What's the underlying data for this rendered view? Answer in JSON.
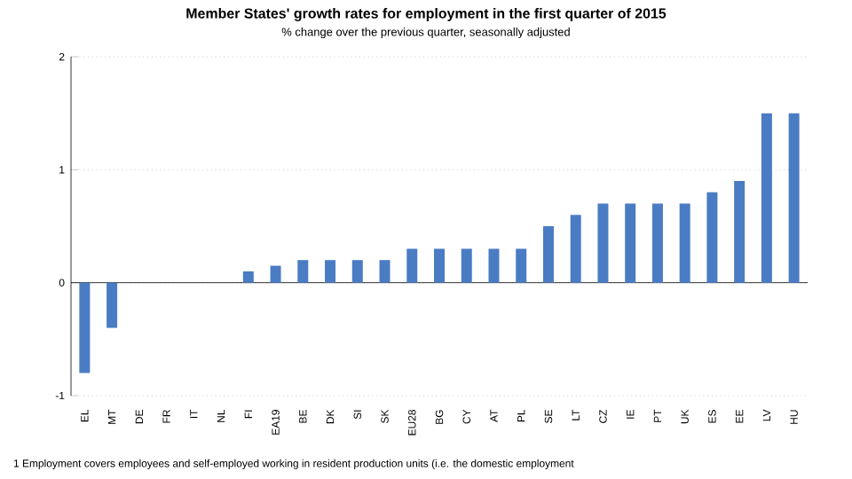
{
  "chart_data": {
    "type": "bar",
    "title": "Member States' growth rates for employment in the first quarter of 2015",
    "subtitle": "% change over the previous quarter, seasonally adjusted",
    "categories": [
      "EL",
      "MT",
      "DE",
      "FR",
      "IT",
      "NL",
      "FI",
      "EA19",
      "BE",
      "DK",
      "SI",
      "SK",
      "EU28",
      "BG",
      "CY",
      "AT",
      "PL",
      "SE",
      "LT",
      "CZ",
      "IE",
      "PT",
      "UK",
      "ES",
      "EE",
      "LV",
      "HU"
    ],
    "values": [
      -0.8,
      -0.4,
      0,
      0,
      0,
      0,
      0.1,
      0.15,
      0.2,
      0.2,
      0.2,
      0.2,
      0.3,
      0.3,
      0.3,
      0.3,
      0.3,
      0.5,
      0.6,
      0.7,
      0.7,
      0.7,
      0.7,
      0.8,
      0.9,
      1.5,
      1.5
    ],
    "color": "#4a7cc4",
    "ylim": [
      -1,
      2
    ],
    "yticks": [
      -1,
      0,
      1,
      2
    ],
    "grid": "y",
    "annotations": [
      "1   Employment covers employees and self-employed working in resident production units (i.e. the domestic employment"
    ]
  }
}
